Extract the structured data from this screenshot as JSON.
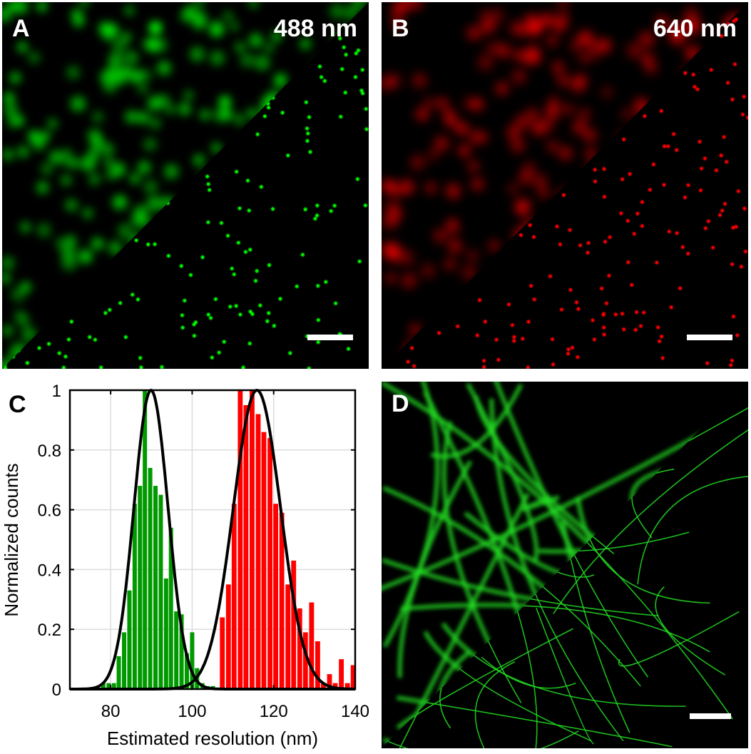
{
  "panels": {
    "a": {
      "letter": "A",
      "wavelength": "488 nm",
      "color": "#00ff00"
    },
    "b": {
      "letter": "B",
      "wavelength": "640 nm",
      "color": "#ff0000"
    },
    "c": {
      "letter": "C"
    },
    "d": {
      "letter": "D",
      "color": "#22dd22"
    }
  },
  "chart_data": {
    "type": "bar",
    "xlabel": "Estimated resolution (nm)",
    "ylabel": "Normalized counts",
    "xlim": [
      70,
      140
    ],
    "ylim": [
      0,
      1
    ],
    "xticks": [
      "80",
      "100",
      "120",
      "140"
    ],
    "yticks": [
      "0",
      "0.2",
      "0.4",
      "0.6",
      "0.8",
      "1"
    ],
    "grid": true,
    "series": [
      {
        "color": "#009900",
        "x": [
          78.2,
          79.5,
          80.8,
          82.0,
          83.3,
          84.6,
          85.9,
          87.2,
          88.4,
          89.7,
          91.0,
          92.3,
          93.6,
          94.8,
          96.1,
          97.4,
          98.7,
          100.0,
          101.2,
          102.5,
          103.8,
          105.1
        ],
        "values": [
          0.02,
          0.02,
          0.02,
          0.11,
          0.19,
          0.33,
          0.62,
          0.68,
          1.0,
          0.74,
          0.68,
          0.65,
          0.37,
          0.54,
          0.26,
          0.25,
          0.12,
          0.19,
          0.07,
          0.02,
          0.01,
          0.01
        ],
        "fit": {
          "mean": 89.9,
          "sigma": 4.2
        }
      },
      {
        "color": "#ff0000",
        "x": [
          107.4,
          108.9,
          110.3,
          111.8,
          113.2,
          114.7,
          116.2,
          117.6,
          119.1,
          120.5,
          122.0,
          123.5,
          124.9,
          126.4,
          127.8,
          129.3,
          130.8,
          132.2,
          133.7,
          135.1,
          136.6,
          138.1,
          139.5
        ],
        "values": [
          0.24,
          0.35,
          0.62,
          1.0,
          0.95,
          1.0,
          0.92,
          0.86,
          0.84,
          0.62,
          0.59,
          0.35,
          0.43,
          0.27,
          0.19,
          0.29,
          0.16,
          0.02,
          0.05,
          0.02,
          0.1,
          0.02,
          0.08
        ],
        "fit": {
          "mean": 115.9,
          "sigma": 5.8
        }
      }
    ],
    "fit_color": "#000000"
  }
}
